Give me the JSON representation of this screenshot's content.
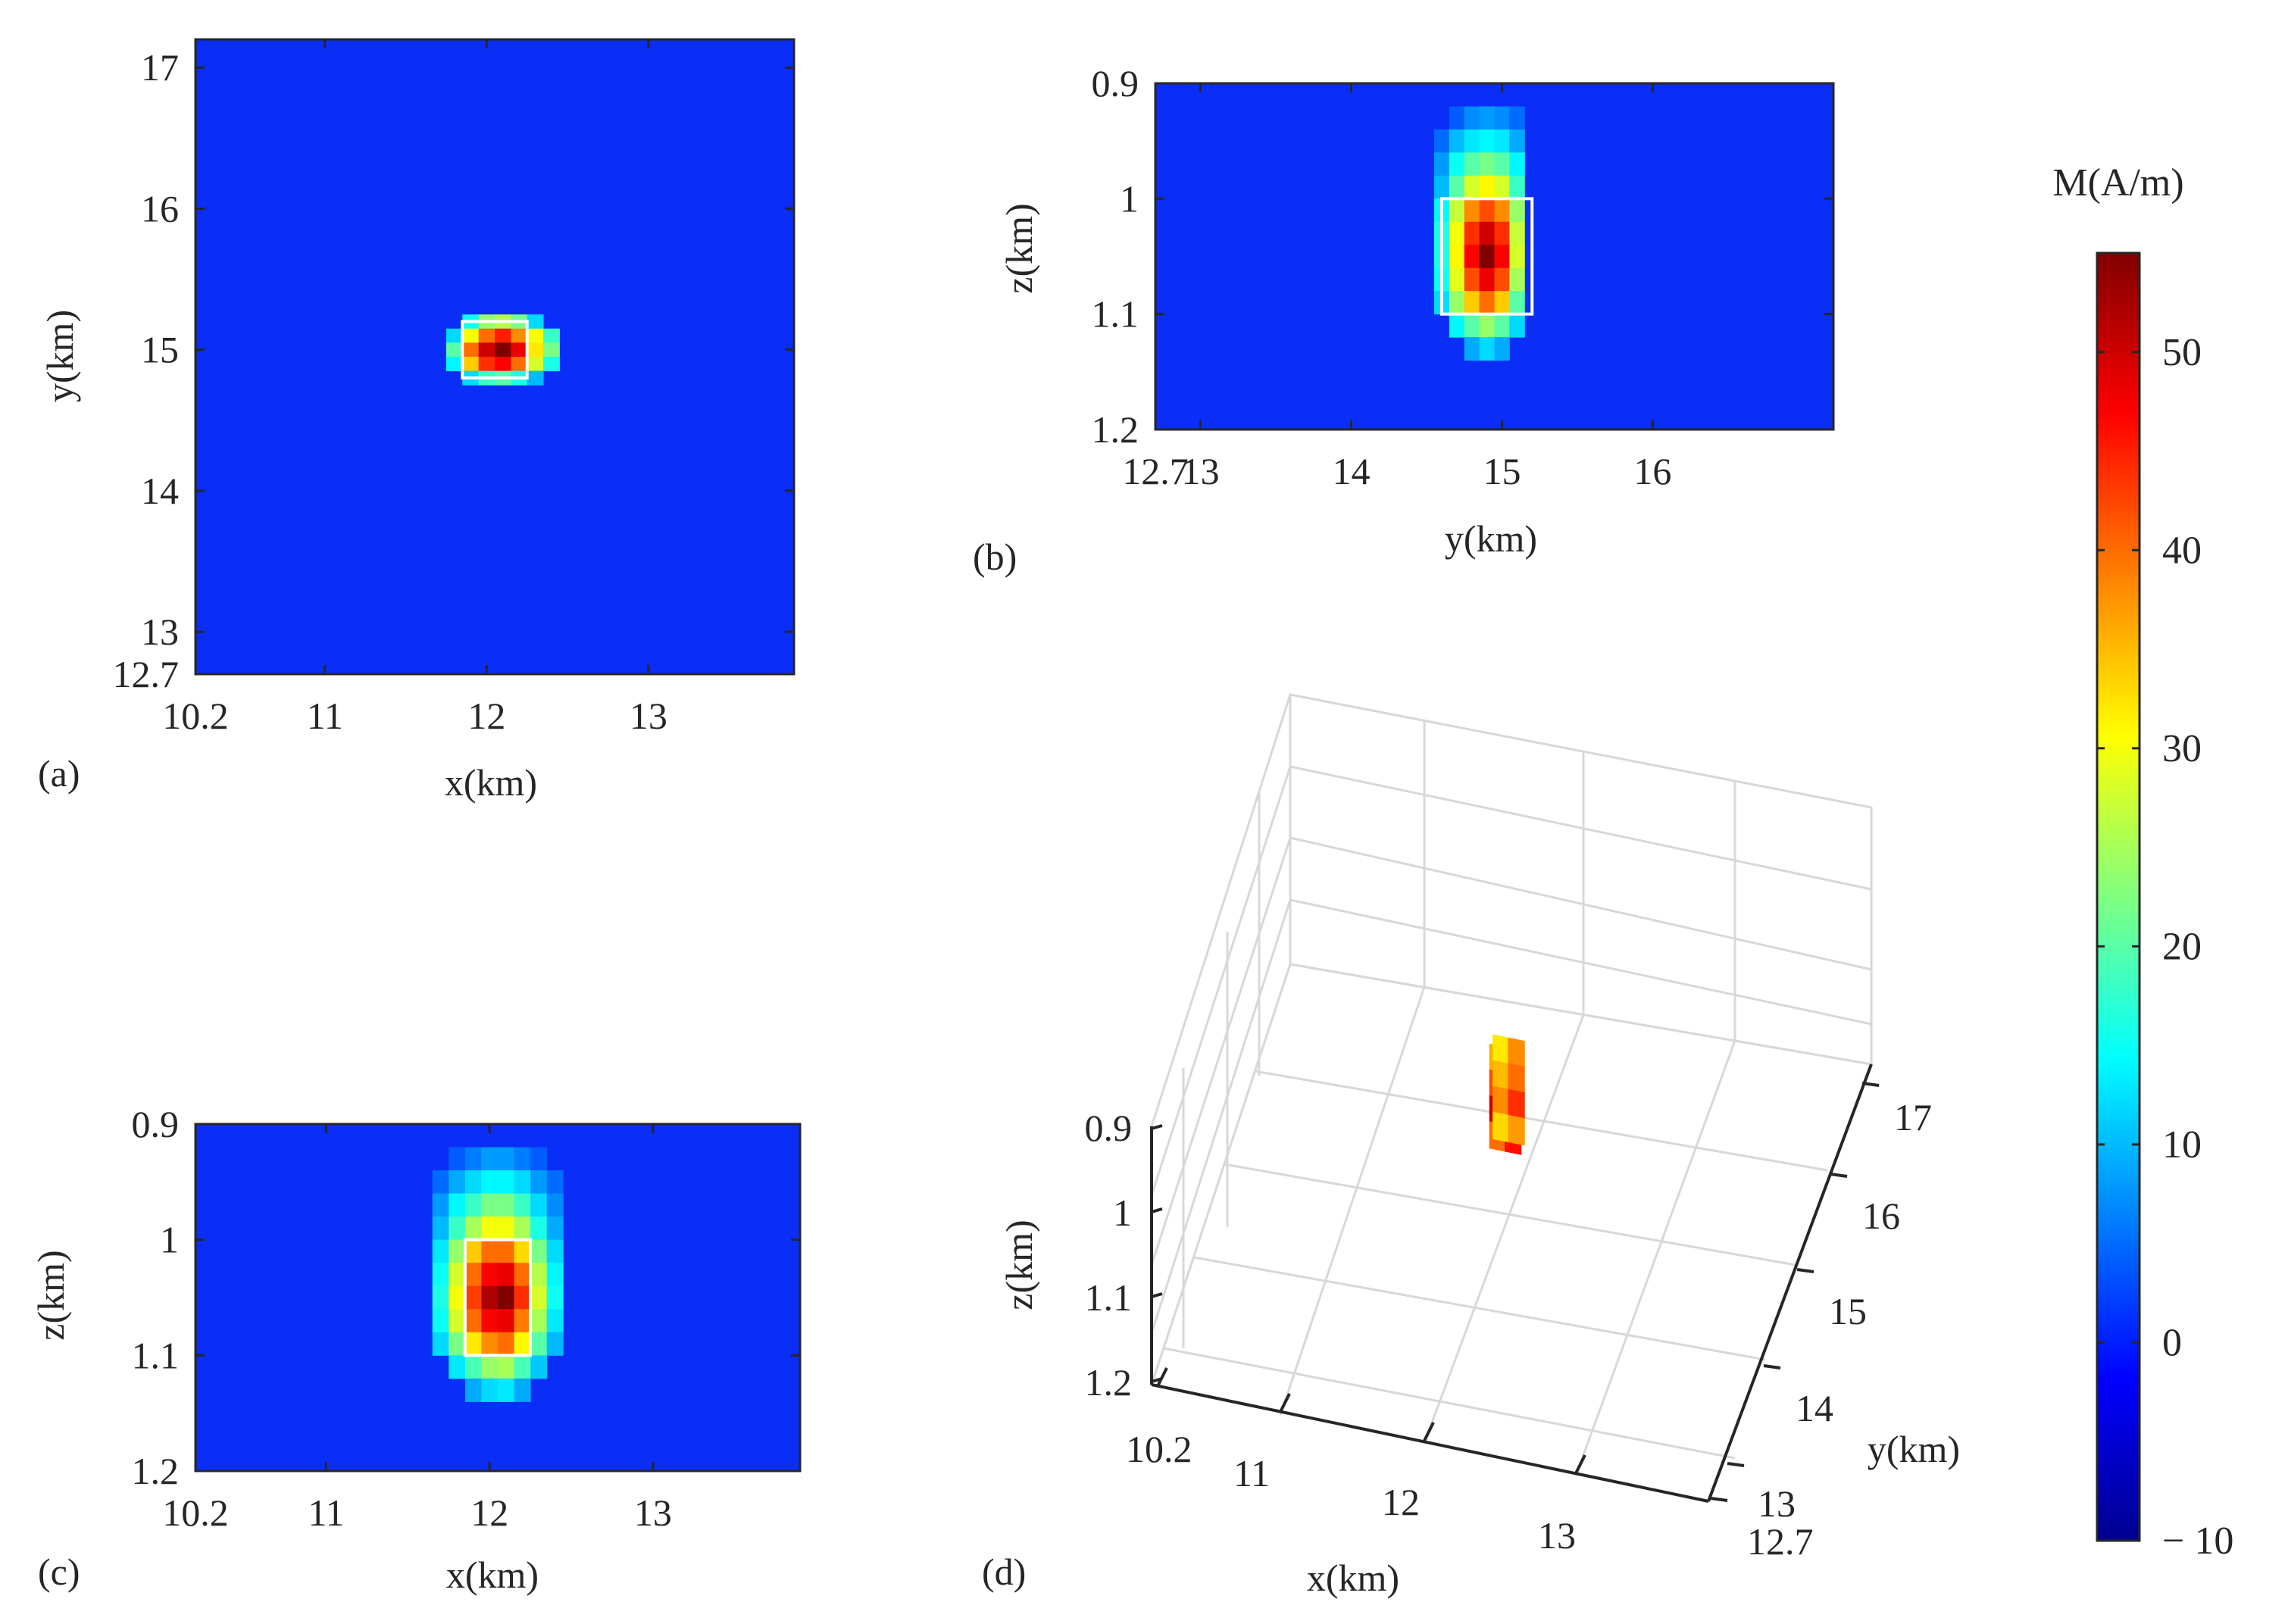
{
  "colors": {
    "background_field": "#0a2ef5",
    "box_outline": "#ffffff",
    "axis": "#262626",
    "grid3d": "#d8d8d8"
  },
  "colormap": "jet",
  "chart_data": [
    {
      "panel": "(a)",
      "type": "heatmap",
      "title": "",
      "xlabel": "x(km)",
      "ylabel": "y(km)",
      "xlim": [
        10.2,
        13.9
      ],
      "ylim": [
        12.7,
        17.2
      ],
      "xticks": [
        10.2,
        11,
        12,
        13
      ],
      "xtick_labels": [
        "10.2",
        "11",
        "12",
        "13"
      ],
      "yticks": [
        12.7,
        13,
        14,
        15,
        16,
        17
      ],
      "ytick_labels": [
        "12.7",
        "13",
        "14",
        "15",
        "16",
        "17"
      ],
      "background_value": 0,
      "cells": [
        {
          "x": 11.9,
          "y": 15.2,
          "v": 15
        },
        {
          "x": 12.0,
          "y": 15.2,
          "v": 24
        },
        {
          "x": 12.1,
          "y": 15.2,
          "v": 26
        },
        {
          "x": 12.2,
          "y": 15.2,
          "v": 22
        },
        {
          "x": 12.3,
          "y": 15.2,
          "v": 12
        },
        {
          "x": 11.8,
          "y": 15.1,
          "v": 12
        },
        {
          "x": 11.9,
          "y": 15.1,
          "v": 30
        },
        {
          "x": 12.0,
          "y": 15.1,
          "v": 40
        },
        {
          "x": 12.1,
          "y": 15.1,
          "v": 45
        },
        {
          "x": 12.2,
          "y": 15.1,
          "v": 38
        },
        {
          "x": 12.3,
          "y": 15.1,
          "v": 30
        },
        {
          "x": 12.4,
          "y": 15.1,
          "v": 18
        },
        {
          "x": 11.8,
          "y": 15.0,
          "v": 20
        },
        {
          "x": 11.9,
          "y": 15.0,
          "v": 40
        },
        {
          "x": 12.0,
          "y": 15.0,
          "v": 50
        },
        {
          "x": 12.1,
          "y": 15.0,
          "v": 55
        },
        {
          "x": 12.2,
          "y": 15.0,
          "v": 48
        },
        {
          "x": 12.3,
          "y": 15.0,
          "v": 32
        },
        {
          "x": 12.4,
          "y": 15.0,
          "v": 22
        },
        {
          "x": 11.8,
          "y": 14.9,
          "v": 14
        },
        {
          "x": 11.9,
          "y": 14.9,
          "v": 34
        },
        {
          "x": 12.0,
          "y": 14.9,
          "v": 44
        },
        {
          "x": 12.1,
          "y": 14.9,
          "v": 47
        },
        {
          "x": 12.2,
          "y": 14.9,
          "v": 40
        },
        {
          "x": 12.3,
          "y": 14.9,
          "v": 28
        },
        {
          "x": 12.4,
          "y": 14.9,
          "v": 16
        },
        {
          "x": 11.9,
          "y": 14.8,
          "v": 12
        },
        {
          "x": 12.0,
          "y": 14.8,
          "v": 18
        },
        {
          "x": 12.1,
          "y": 14.8,
          "v": 20
        },
        {
          "x": 12.2,
          "y": 14.8,
          "v": 16
        },
        {
          "x": 12.3,
          "y": 14.8,
          "v": 10
        }
      ],
      "true_body_box": {
        "x0": 11.85,
        "x1": 12.25,
        "y0": 14.8,
        "y1": 15.2
      }
    },
    {
      "panel": "(b)",
      "type": "heatmap",
      "title": "",
      "xlabel": "y(km)",
      "ylabel": "z(km)",
      "xlim": [
        12.7,
        17.2
      ],
      "ylim": [
        0.9,
        1.2
      ],
      "y_reversed": true,
      "xticks": [
        12.7,
        13,
        14,
        15,
        16
      ],
      "xtick_labels": [
        "12.7",
        "13",
        "14",
        "15",
        "16"
      ],
      "yticks": [
        0.9,
        1.0,
        1.1,
        1.2
      ],
      "ytick_labels": [
        "0.9",
        "1",
        "1.1",
        "1.2"
      ],
      "background_value": 0,
      "cells": [
        {
          "x": 14.7,
          "y": 0.93,
          "v": 4
        },
        {
          "x": 14.8,
          "y": 0.93,
          "v": 7
        },
        {
          "x": 14.9,
          "y": 0.93,
          "v": 8
        },
        {
          "x": 15.0,
          "y": 0.93,
          "v": 7
        },
        {
          "x": 15.1,
          "y": 0.93,
          "v": 5
        },
        {
          "x": 14.6,
          "y": 0.95,
          "v": 5
        },
        {
          "x": 14.7,
          "y": 0.95,
          "v": 10
        },
        {
          "x": 14.8,
          "y": 0.95,
          "v": 13
        },
        {
          "x": 14.9,
          "y": 0.95,
          "v": 14
        },
        {
          "x": 15.0,
          "y": 0.95,
          "v": 13
        },
        {
          "x": 15.1,
          "y": 0.95,
          "v": 9
        },
        {
          "x": 14.6,
          "y": 0.97,
          "v": 8
        },
        {
          "x": 14.7,
          "y": 0.97,
          "v": 15
        },
        {
          "x": 14.8,
          "y": 0.97,
          "v": 20
        },
        {
          "x": 14.9,
          "y": 0.97,
          "v": 22
        },
        {
          "x": 15.0,
          "y": 0.97,
          "v": 20
        },
        {
          "x": 15.1,
          "y": 0.97,
          "v": 14
        },
        {
          "x": 14.6,
          "y": 0.99,
          "v": 10
        },
        {
          "x": 14.7,
          "y": 0.99,
          "v": 20
        },
        {
          "x": 14.8,
          "y": 0.99,
          "v": 28
        },
        {
          "x": 14.9,
          "y": 0.99,
          "v": 31
        },
        {
          "x": 15.0,
          "y": 0.99,
          "v": 28
        },
        {
          "x": 15.1,
          "y": 0.99,
          "v": 18
        },
        {
          "x": 14.6,
          "y": 1.01,
          "v": 14
        },
        {
          "x": 14.7,
          "y": 1.01,
          "v": 27
        },
        {
          "x": 14.8,
          "y": 1.01,
          "v": 38
        },
        {
          "x": 14.9,
          "y": 1.01,
          "v": 42
        },
        {
          "x": 15.0,
          "y": 1.01,
          "v": 38
        },
        {
          "x": 15.1,
          "y": 1.01,
          "v": 24
        },
        {
          "x": 14.6,
          "y": 1.03,
          "v": 16
        },
        {
          "x": 14.7,
          "y": 1.03,
          "v": 30
        },
        {
          "x": 14.8,
          "y": 1.03,
          "v": 44
        },
        {
          "x": 14.9,
          "y": 1.03,
          "v": 50
        },
        {
          "x": 15.0,
          "y": 1.03,
          "v": 44
        },
        {
          "x": 15.1,
          "y": 1.03,
          "v": 27
        },
        {
          "x": 14.6,
          "y": 1.05,
          "v": 16
        },
        {
          "x": 14.7,
          "y": 1.05,
          "v": 31
        },
        {
          "x": 14.8,
          "y": 1.05,
          "v": 47
        },
        {
          "x": 14.9,
          "y": 1.05,
          "v": 55
        },
        {
          "x": 15.0,
          "y": 1.05,
          "v": 47
        },
        {
          "x": 15.1,
          "y": 1.05,
          "v": 28
        },
        {
          "x": 14.6,
          "y": 1.07,
          "v": 15
        },
        {
          "x": 14.7,
          "y": 1.07,
          "v": 29
        },
        {
          "x": 14.8,
          "y": 1.07,
          "v": 42
        },
        {
          "x": 14.9,
          "y": 1.07,
          "v": 48
        },
        {
          "x": 15.0,
          "y": 1.07,
          "v": 42
        },
        {
          "x": 15.1,
          "y": 1.07,
          "v": 25
        },
        {
          "x": 14.6,
          "y": 1.09,
          "v": 12
        },
        {
          "x": 14.7,
          "y": 1.09,
          "v": 24
        },
        {
          "x": 14.8,
          "y": 1.09,
          "v": 34
        },
        {
          "x": 14.9,
          "y": 1.09,
          "v": 40
        },
        {
          "x": 15.0,
          "y": 1.09,
          "v": 34
        },
        {
          "x": 15.1,
          "y": 1.09,
          "v": 20
        },
        {
          "x": 14.7,
          "y": 1.11,
          "v": 14
        },
        {
          "x": 14.8,
          "y": 1.11,
          "v": 20
        },
        {
          "x": 14.9,
          "y": 1.11,
          "v": 24
        },
        {
          "x": 15.0,
          "y": 1.11,
          "v": 20
        },
        {
          "x": 15.1,
          "y": 1.11,
          "v": 12
        },
        {
          "x": 14.8,
          "y": 1.13,
          "v": 9
        },
        {
          "x": 14.9,
          "y": 1.13,
          "v": 12
        },
        {
          "x": 15.0,
          "y": 1.13,
          "v": 9
        }
      ],
      "true_body_box": {
        "x0": 14.6,
        "x1": 15.2,
        "y0": 1.0,
        "y1": 1.1
      }
    },
    {
      "panel": "(c)",
      "type": "heatmap",
      "title": "",
      "xlabel": "x(km)",
      "ylabel": "z(km)",
      "xlim": [
        10.2,
        13.9
      ],
      "ylim": [
        0.9,
        1.2
      ],
      "y_reversed": true,
      "xticks": [
        10.2,
        11,
        12,
        13
      ],
      "xtick_labels": [
        "10.2",
        "11",
        "12",
        "13"
      ],
      "yticks": [
        0.9,
        1.0,
        1.1,
        1.2
      ],
      "ytick_labels": [
        "0.9",
        "1",
        "1.1",
        "1.2"
      ],
      "background_value": 0,
      "cells": [
        {
          "x": 11.8,
          "y": 0.93,
          "v": 4
        },
        {
          "x": 11.9,
          "y": 0.93,
          "v": 6
        },
        {
          "x": 12.0,
          "y": 0.93,
          "v": 8
        },
        {
          "x": 12.1,
          "y": 0.93,
          "v": 8
        },
        {
          "x": 12.2,
          "y": 0.93,
          "v": 6
        },
        {
          "x": 12.3,
          "y": 0.93,
          "v": 4
        },
        {
          "x": 11.7,
          "y": 0.95,
          "v": 5
        },
        {
          "x": 11.8,
          "y": 0.95,
          "v": 9
        },
        {
          "x": 11.9,
          "y": 0.95,
          "v": 12
        },
        {
          "x": 12.0,
          "y": 0.95,
          "v": 14
        },
        {
          "x": 12.1,
          "y": 0.95,
          "v": 14
        },
        {
          "x": 12.2,
          "y": 0.95,
          "v": 12
        },
        {
          "x": 12.3,
          "y": 0.95,
          "v": 8
        },
        {
          "x": 12.4,
          "y": 0.95,
          "v": 5
        },
        {
          "x": 11.7,
          "y": 0.97,
          "v": 8
        },
        {
          "x": 11.8,
          "y": 0.97,
          "v": 14
        },
        {
          "x": 11.9,
          "y": 0.97,
          "v": 18
        },
        {
          "x": 12.0,
          "y": 0.97,
          "v": 22
        },
        {
          "x": 12.1,
          "y": 0.97,
          "v": 22
        },
        {
          "x": 12.2,
          "y": 0.97,
          "v": 18
        },
        {
          "x": 12.3,
          "y": 0.97,
          "v": 12
        },
        {
          "x": 12.4,
          "y": 0.97,
          "v": 7
        },
        {
          "x": 11.7,
          "y": 0.99,
          "v": 10
        },
        {
          "x": 11.8,
          "y": 0.99,
          "v": 18
        },
        {
          "x": 11.9,
          "y": 0.99,
          "v": 25
        },
        {
          "x": 12.0,
          "y": 0.99,
          "v": 30
        },
        {
          "x": 12.1,
          "y": 0.99,
          "v": 30
        },
        {
          "x": 12.2,
          "y": 0.99,
          "v": 25
        },
        {
          "x": 12.3,
          "y": 0.99,
          "v": 16
        },
        {
          "x": 12.4,
          "y": 0.99,
          "v": 9
        },
        {
          "x": 11.7,
          "y": 1.01,
          "v": 13
        },
        {
          "x": 11.8,
          "y": 1.01,
          "v": 24
        },
        {
          "x": 11.9,
          "y": 1.01,
          "v": 34
        },
        {
          "x": 12.0,
          "y": 1.01,
          "v": 40
        },
        {
          "x": 12.1,
          "y": 1.01,
          "v": 40
        },
        {
          "x": 12.2,
          "y": 1.01,
          "v": 33
        },
        {
          "x": 12.3,
          "y": 1.01,
          "v": 22
        },
        {
          "x": 12.4,
          "y": 1.01,
          "v": 12
        },
        {
          "x": 11.7,
          "y": 1.03,
          "v": 15
        },
        {
          "x": 11.8,
          "y": 1.03,
          "v": 28
        },
        {
          "x": 11.9,
          "y": 1.03,
          "v": 40
        },
        {
          "x": 12.0,
          "y": 1.03,
          "v": 47
        },
        {
          "x": 12.1,
          "y": 1.03,
          "v": 48
        },
        {
          "x": 12.2,
          "y": 1.03,
          "v": 40
        },
        {
          "x": 12.3,
          "y": 1.03,
          "v": 26
        },
        {
          "x": 12.4,
          "y": 1.03,
          "v": 14
        },
        {
          "x": 11.7,
          "y": 1.05,
          "v": 16
        },
        {
          "x": 11.8,
          "y": 1.05,
          "v": 30
        },
        {
          "x": 11.9,
          "y": 1.05,
          "v": 43
        },
        {
          "x": 12.0,
          "y": 1.05,
          "v": 52
        },
        {
          "x": 12.1,
          "y": 1.05,
          "v": 55
        },
        {
          "x": 12.2,
          "y": 1.05,
          "v": 44
        },
        {
          "x": 12.3,
          "y": 1.05,
          "v": 28
        },
        {
          "x": 12.4,
          "y": 1.05,
          "v": 15
        },
        {
          "x": 11.7,
          "y": 1.07,
          "v": 15
        },
        {
          "x": 11.8,
          "y": 1.07,
          "v": 28
        },
        {
          "x": 11.9,
          "y": 1.07,
          "v": 40
        },
        {
          "x": 12.0,
          "y": 1.07,
          "v": 47
        },
        {
          "x": 12.1,
          "y": 1.07,
          "v": 48
        },
        {
          "x": 12.2,
          "y": 1.07,
          "v": 39
        },
        {
          "x": 12.3,
          "y": 1.07,
          "v": 25
        },
        {
          "x": 12.4,
          "y": 1.07,
          "v": 13
        },
        {
          "x": 11.7,
          "y": 1.09,
          "v": 12
        },
        {
          "x": 11.8,
          "y": 1.09,
          "v": 22
        },
        {
          "x": 11.9,
          "y": 1.09,
          "v": 32
        },
        {
          "x": 12.0,
          "y": 1.09,
          "v": 38
        },
        {
          "x": 12.1,
          "y": 1.09,
          "v": 40
        },
        {
          "x": 12.2,
          "y": 1.09,
          "v": 31
        },
        {
          "x": 12.3,
          "y": 1.09,
          "v": 20
        },
        {
          "x": 12.4,
          "y": 1.09,
          "v": 10
        },
        {
          "x": 11.8,
          "y": 1.11,
          "v": 13
        },
        {
          "x": 11.9,
          "y": 1.11,
          "v": 19
        },
        {
          "x": 12.0,
          "y": 1.11,
          "v": 24
        },
        {
          "x": 12.1,
          "y": 1.11,
          "v": 25
        },
        {
          "x": 12.2,
          "y": 1.11,
          "v": 19
        },
        {
          "x": 12.3,
          "y": 1.11,
          "v": 11
        },
        {
          "x": 11.9,
          "y": 1.13,
          "v": 9
        },
        {
          "x": 12.0,
          "y": 1.13,
          "v": 12
        },
        {
          "x": 12.1,
          "y": 1.13,
          "v": 13
        },
        {
          "x": 12.2,
          "y": 1.13,
          "v": 9
        }
      ],
      "true_body_box": {
        "x0": 11.85,
        "x1": 12.25,
        "y0": 1.0,
        "y1": 1.1
      }
    },
    {
      "panel": "(d)",
      "type": "scatter",
      "title": "",
      "xlabel": "x(km)",
      "ylabel": "y(km)",
      "zlabel": "z(km)",
      "xlim": [
        10.2,
        13.9
      ],
      "ylim": [
        12.7,
        17.2
      ],
      "zlim": [
        0.9,
        1.2
      ],
      "xtick_labels": [
        "10.2",
        "11",
        "12",
        "13"
      ],
      "ytick_labels": [
        "12.7",
        "13",
        "14",
        "15",
        "16",
        "17"
      ],
      "ztick_labels": [
        "0.9",
        "1",
        "1.1",
        "1.2"
      ],
      "points": [
        {
          "x": 12.0,
          "y": 15.0,
          "z": 1.0,
          "v": 36
        },
        {
          "x": 12.1,
          "y": 15.0,
          "z": 1.0,
          "v": 44
        },
        {
          "x": 12.0,
          "y": 15.1,
          "z": 1.0,
          "v": 32
        },
        {
          "x": 12.1,
          "y": 15.1,
          "z": 1.0,
          "v": 38
        },
        {
          "x": 12.0,
          "y": 15.0,
          "z": 1.03,
          "v": 42
        },
        {
          "x": 12.1,
          "y": 15.0,
          "z": 1.03,
          "v": 48
        },
        {
          "x": 12.0,
          "y": 15.1,
          "z": 1.03,
          "v": 35
        },
        {
          "x": 12.1,
          "y": 15.1,
          "z": 1.03,
          "v": 40
        },
        {
          "x": 12.0,
          "y": 15.0,
          "z": 1.06,
          "v": 50
        },
        {
          "x": 12.1,
          "y": 15.0,
          "z": 1.06,
          "v": 55
        },
        {
          "x": 12.0,
          "y": 15.1,
          "z": 1.06,
          "v": 38
        },
        {
          "x": 12.1,
          "y": 15.1,
          "z": 1.06,
          "v": 44
        },
        {
          "x": 12.0,
          "y": 15.0,
          "z": 1.09,
          "v": 40
        },
        {
          "x": 12.1,
          "y": 15.0,
          "z": 1.09,
          "v": 46
        },
        {
          "x": 12.0,
          "y": 15.1,
          "z": 1.09,
          "v": 33
        },
        {
          "x": 12.1,
          "y": 15.1,
          "z": 1.09,
          "v": 37
        }
      ]
    },
    {
      "panel": "colorbar",
      "type": "colorbar",
      "title": "M(A/m)",
      "clim": [
        -10,
        55
      ],
      "ticks": [
        -10,
        0,
        10,
        20,
        30,
        40,
        50
      ],
      "tick_labels": [
        "− 10",
        "0",
        "10",
        "20",
        "30",
        "40",
        "50"
      ]
    }
  ]
}
